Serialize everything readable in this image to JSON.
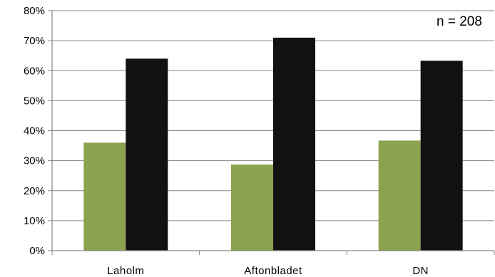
{
  "chart_data": {
    "type": "bar",
    "title": "",
    "xlabel": "",
    "ylabel": "",
    "annotation": "n = 208",
    "categories": [
      "Laholm",
      "Aftonbladet",
      "DN"
    ],
    "series": [
      {
        "values": [
          36,
          28.7,
          36.7
        ],
        "color": "#8ba24f"
      },
      {
        "values": [
          64,
          71,
          63.3
        ],
        "color": "#111111"
      }
    ],
    "ylim": [
      0,
      80
    ],
    "yticks": [
      "0%",
      "10%",
      "20%",
      "30%",
      "40%",
      "50%",
      "60%",
      "70%",
      "80%"
    ],
    "grid": true,
    "legend": "none"
  }
}
